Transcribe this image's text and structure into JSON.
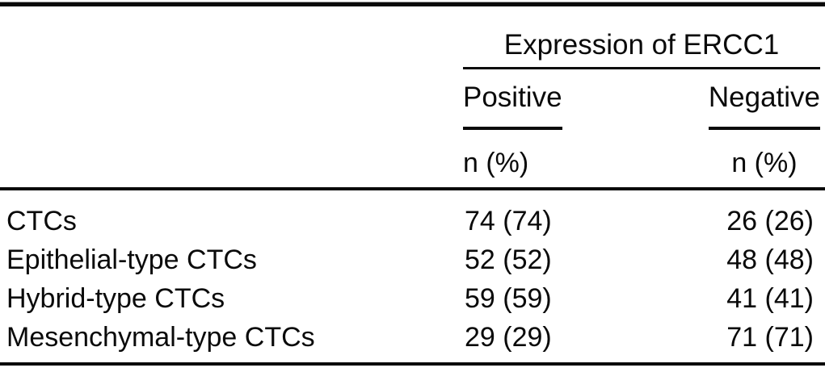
{
  "table": {
    "spanner": "Expression of ERCC1",
    "columns": {
      "positive": {
        "label": "Positive",
        "sublabel": "n (%)"
      },
      "negative": {
        "label": "Negative",
        "sublabel": "n (%)"
      }
    },
    "rows": [
      {
        "label": "CTCs",
        "positive": "74 (74)",
        "negative": "26 (26)"
      },
      {
        "label": "Epithelial-type CTCs",
        "positive": "52 (52)",
        "negative": "48 (48)"
      },
      {
        "label": "Hybrid-type CTCs",
        "positive": "59 (59)",
        "negative": "41 (41)"
      },
      {
        "label": "Mesenchymal-type CTCs",
        "positive": "29 (29)",
        "negative": "71 (71)"
      }
    ],
    "colors": {
      "text": "#0a0a0a",
      "rule": "#0a0a0a",
      "background": "#ffffff"
    }
  }
}
